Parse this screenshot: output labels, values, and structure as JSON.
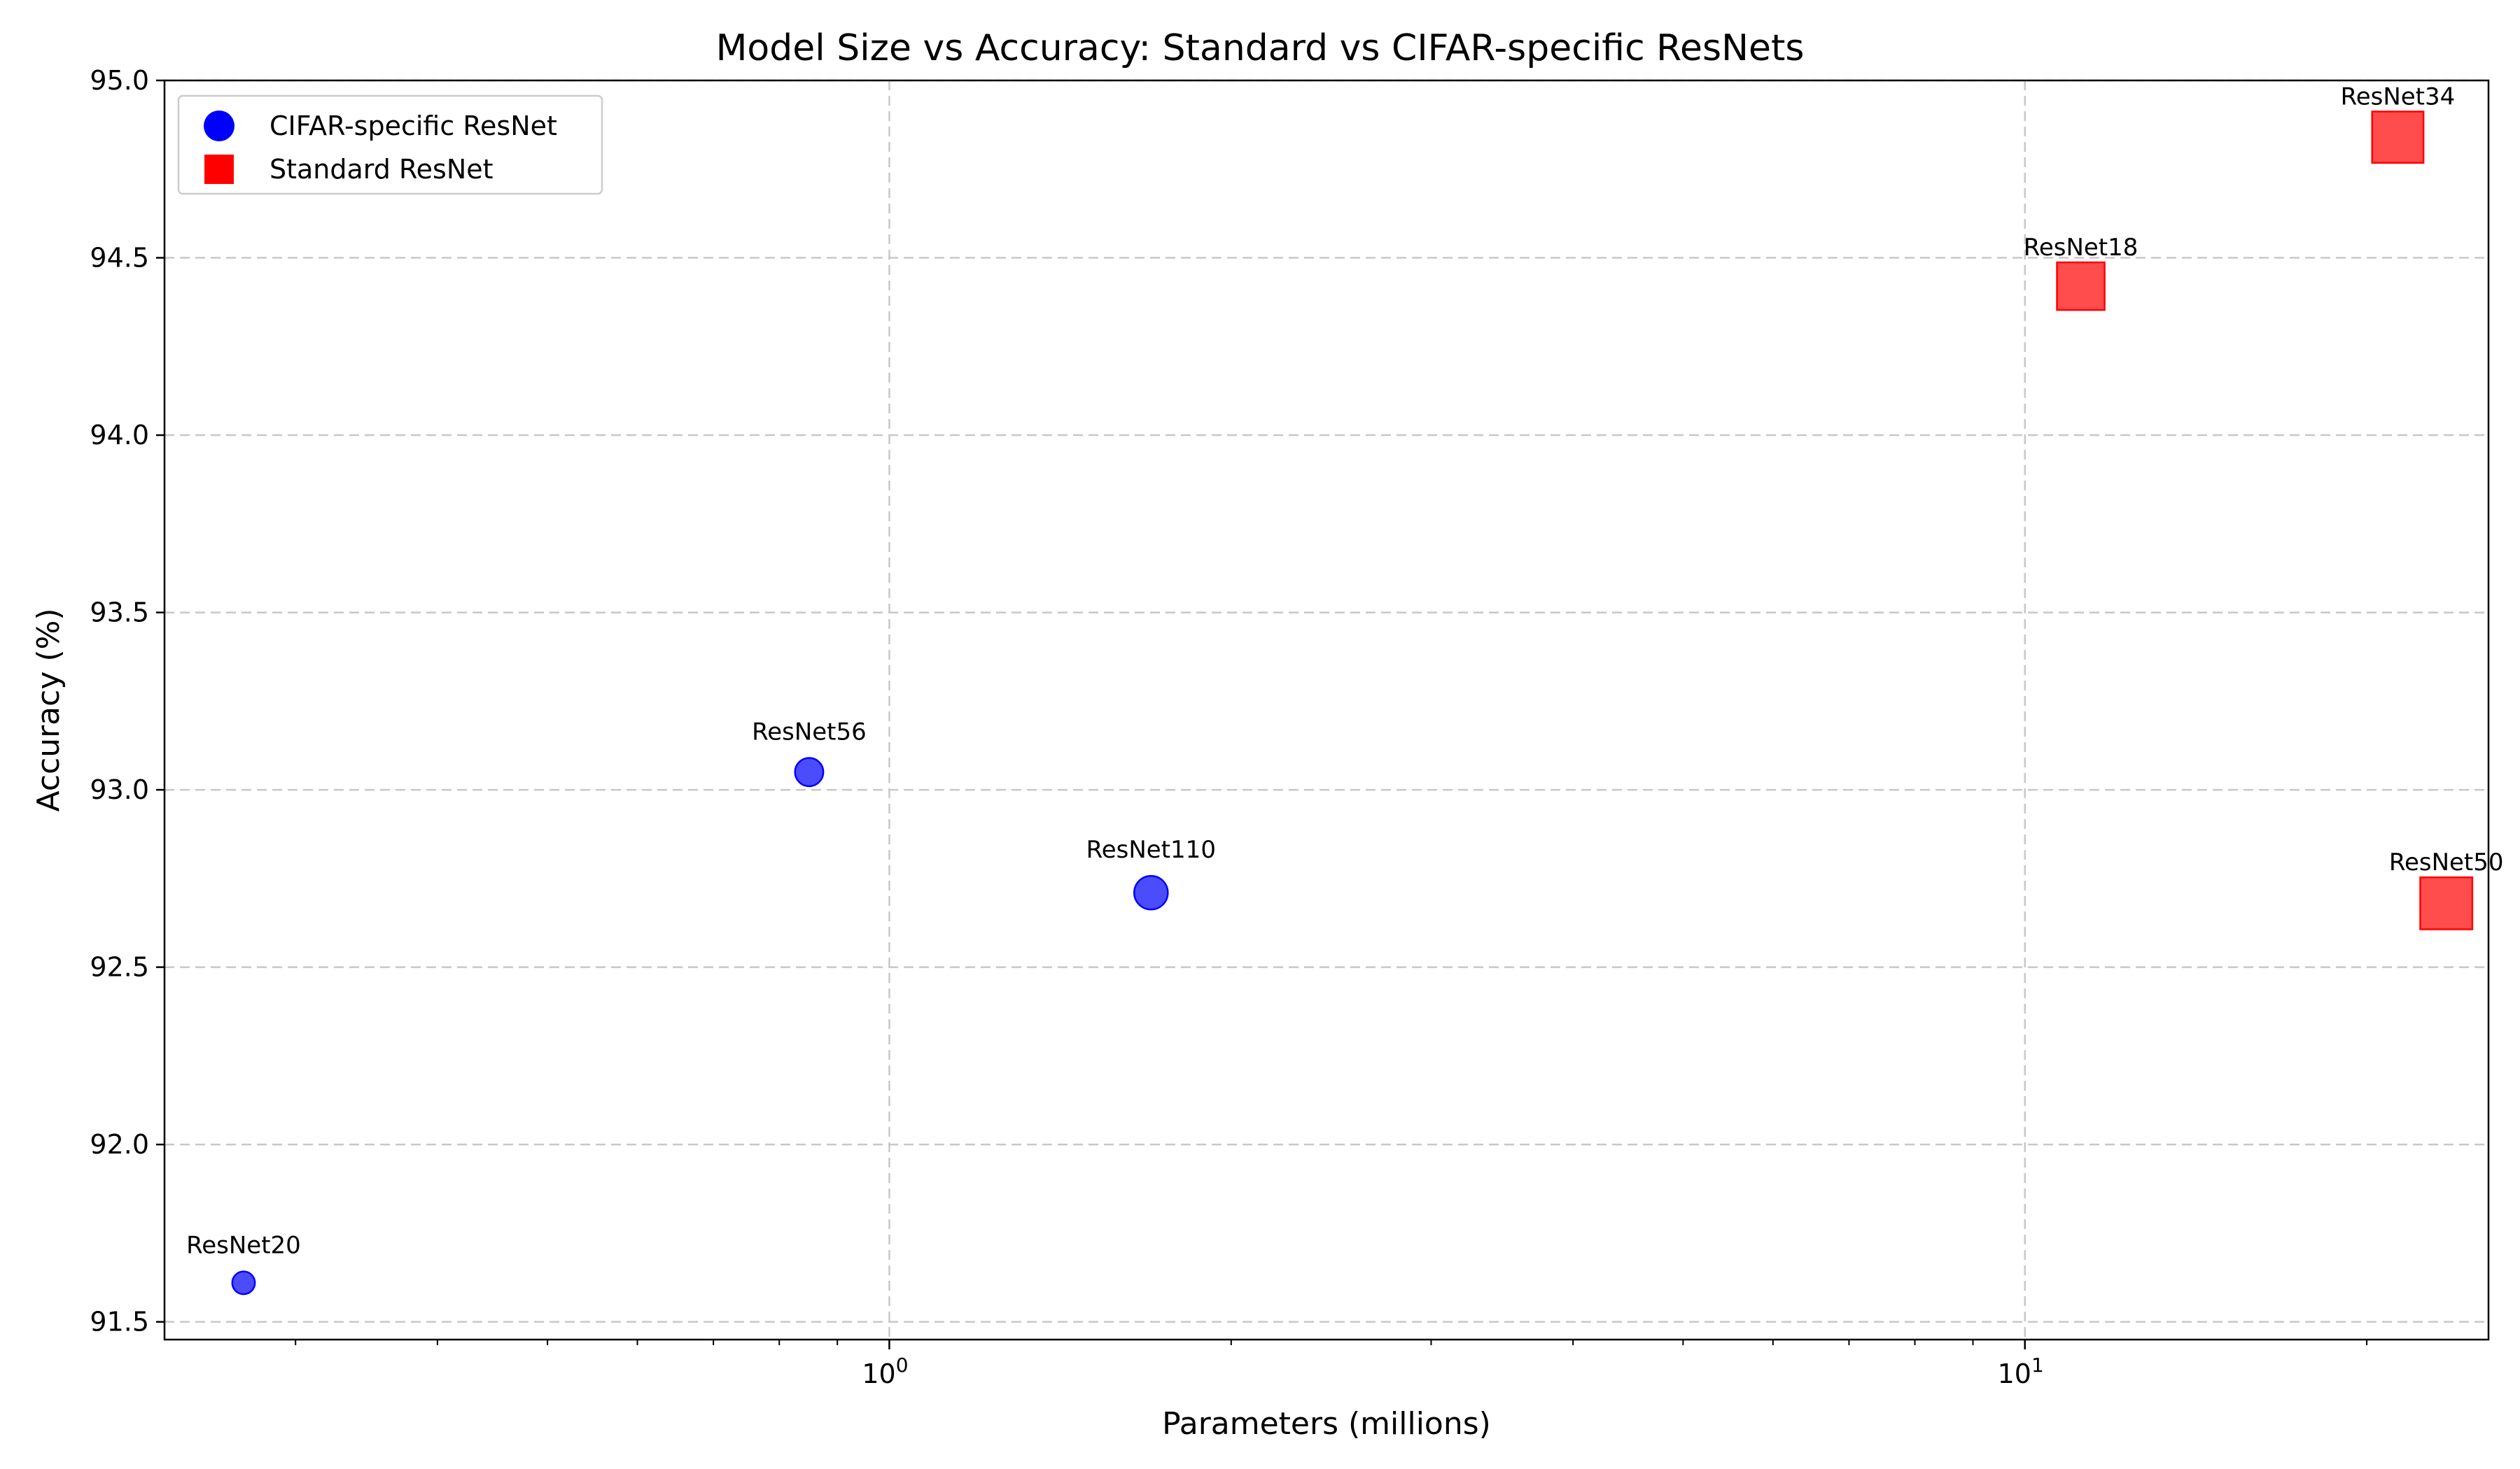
{
  "chart_data": {
    "type": "scatter",
    "title": "Model Size vs Accuracy: Standard vs CIFAR-specific ResNets",
    "xlabel": "Parameters (millions)",
    "ylabel": "Accuracy (%)",
    "xscale": "log",
    "xlim": [
      0.23,
      25.6
    ],
    "ylim": [
      91.45,
      95.0
    ],
    "yticks": [
      91.5,
      92.0,
      92.5,
      93.0,
      93.5,
      94.0,
      94.5,
      95.0
    ],
    "ytick_labels": [
      "91.5",
      "92.0",
      "92.5",
      "93.0",
      "93.5",
      "94.0",
      "94.5",
      "95.0"
    ],
    "xticks": [
      {
        "value": 1,
        "base": "10",
        "exp": "0"
      },
      {
        "value": 10,
        "base": "10",
        "exp": "1"
      }
    ],
    "grid": true,
    "legend_position": "top-left",
    "series": [
      {
        "name": "CIFAR-specific ResNet",
        "marker": "circle",
        "color": "#0000ff",
        "points": [
          {
            "label": "ResNet20",
            "x": 0.27,
            "y": 91.61,
            "params_m": 0.27
          },
          {
            "label": "ResNet56",
            "x": 0.85,
            "y": 93.05,
            "params_m": 0.85
          },
          {
            "label": "ResNet110",
            "x": 1.7,
            "y": 92.71,
            "params_m": 1.7
          }
        ]
      },
      {
        "name": "Standard ResNet",
        "marker": "square",
        "color": "#ff0000",
        "points": [
          {
            "label": "ResNet18",
            "x": 11.2,
            "y": 94.42,
            "params_m": 11.2
          },
          {
            "label": "ResNet34",
            "x": 21.3,
            "y": 94.84,
            "params_m": 21.3
          },
          {
            "label": "ResNet50",
            "x": 23.5,
            "y": 92.68,
            "params_m": 23.5
          }
        ]
      }
    ]
  }
}
